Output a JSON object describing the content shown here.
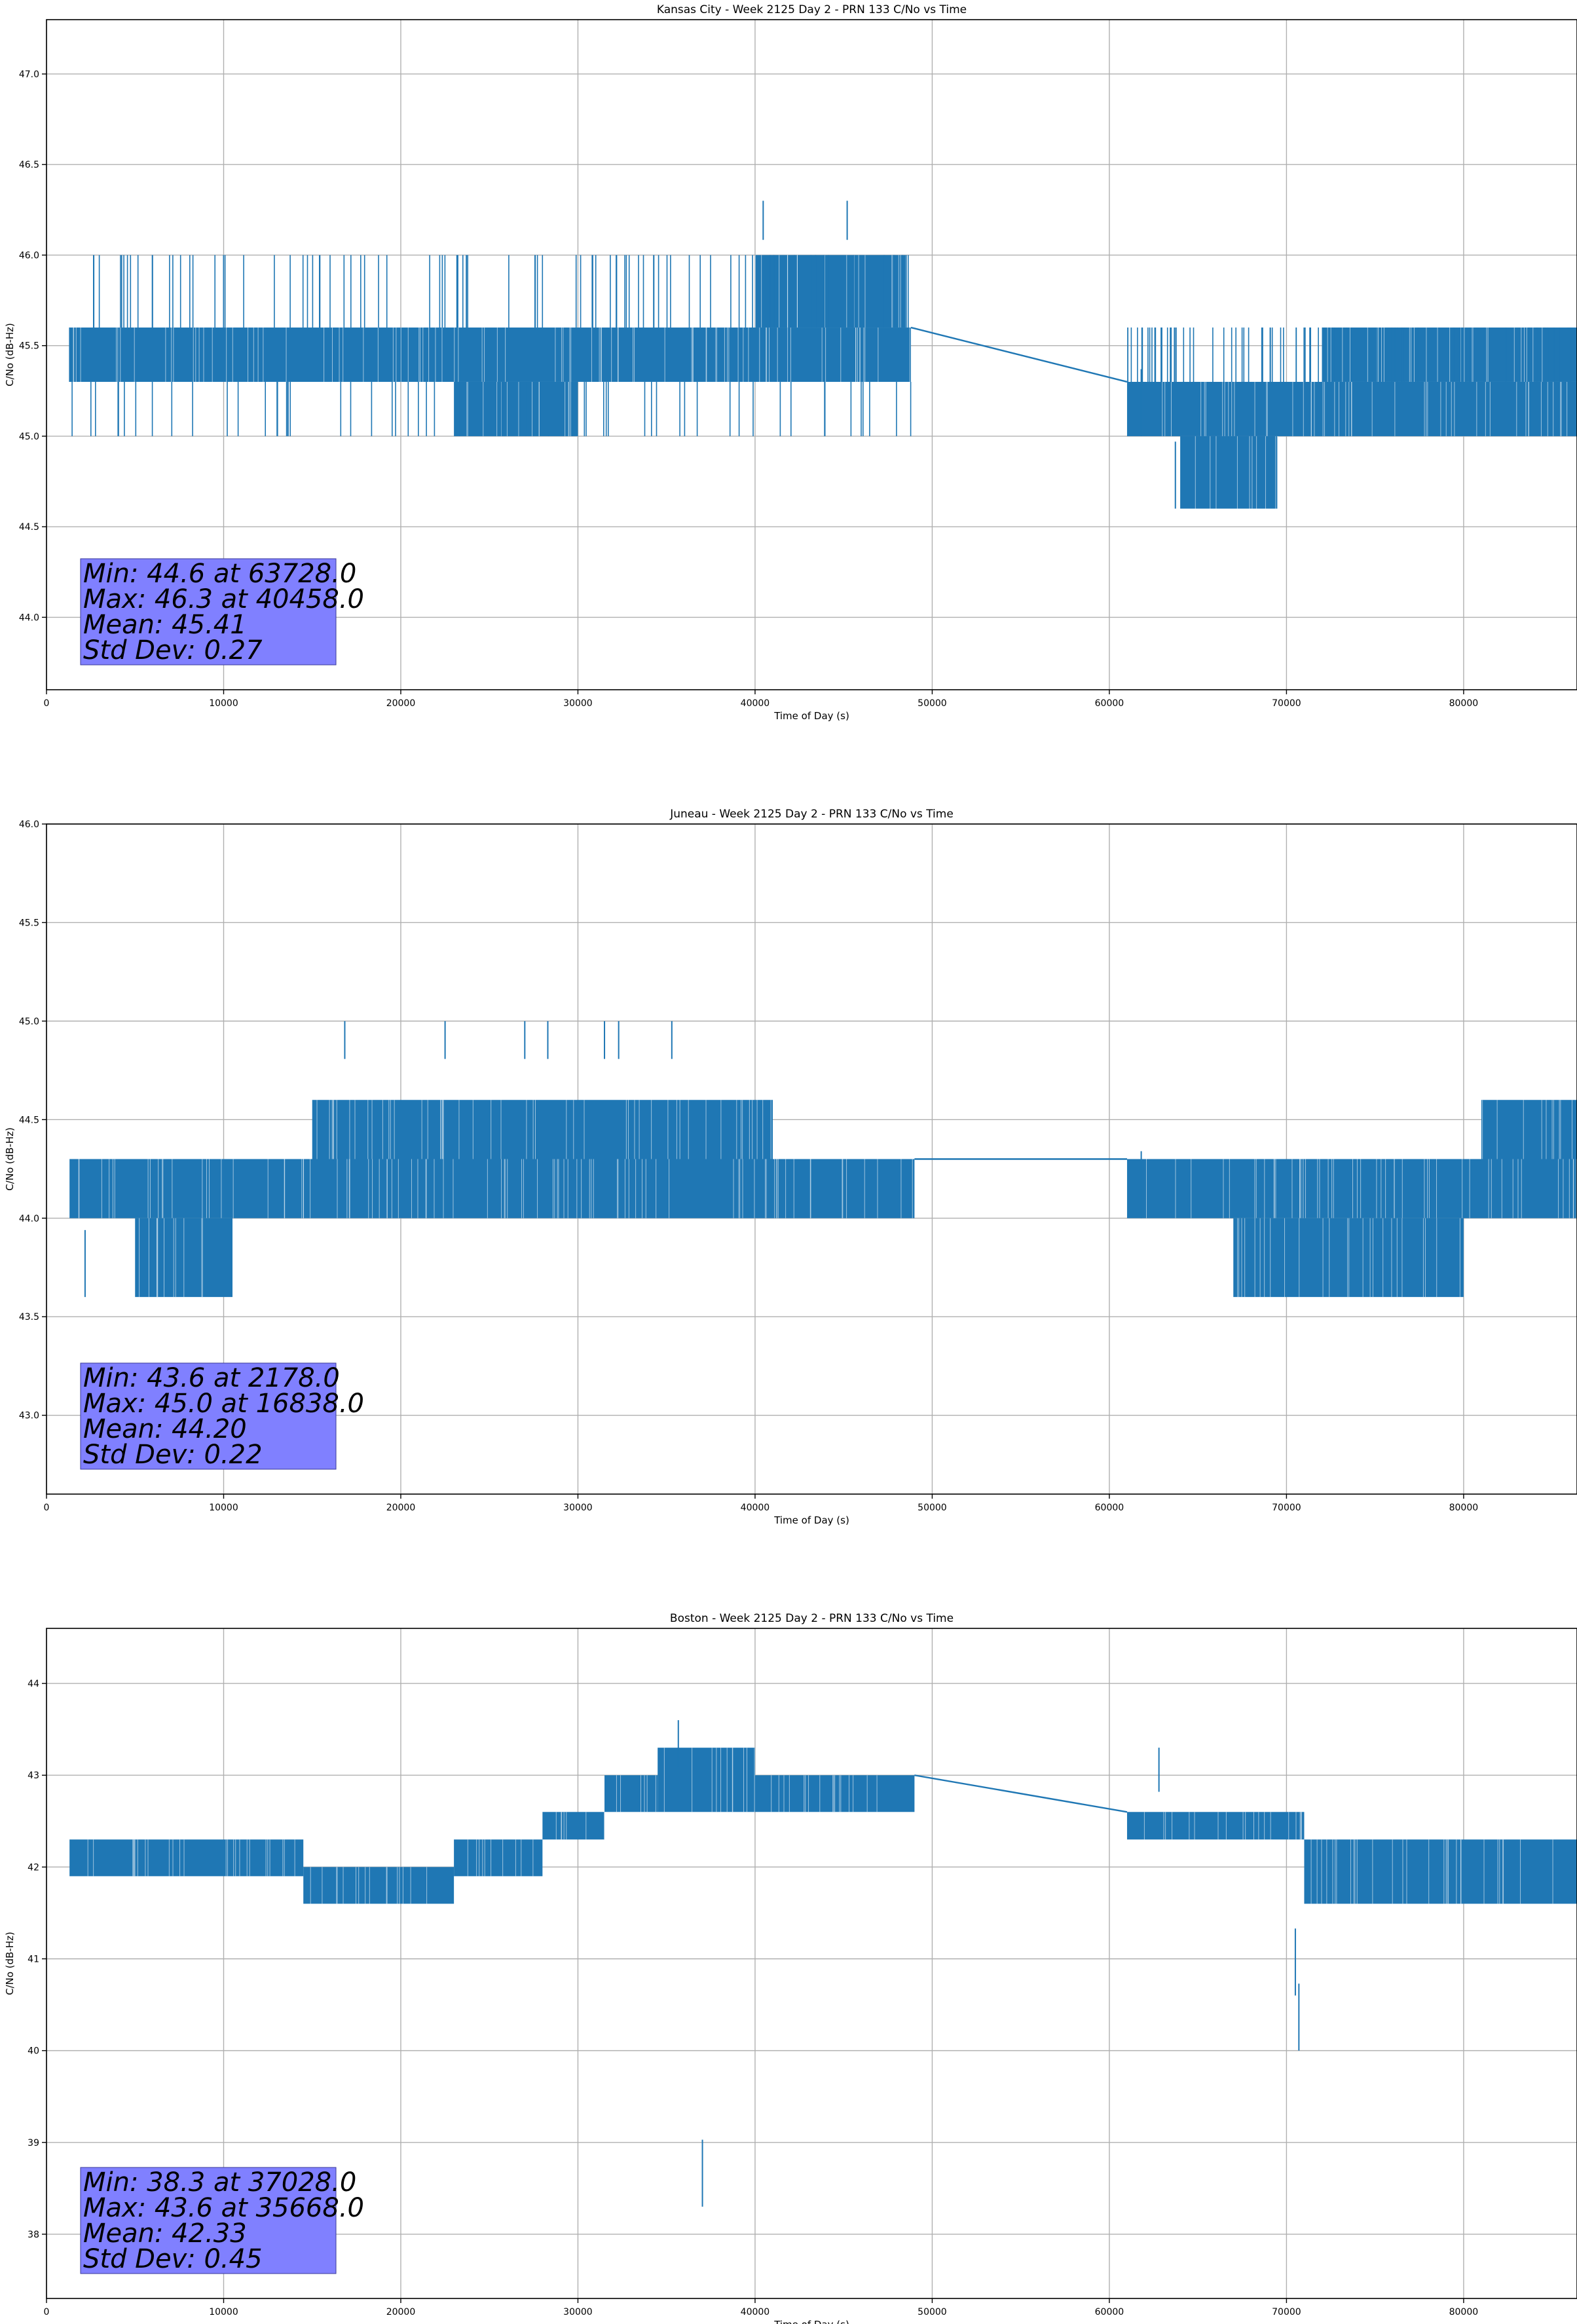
{
  "colors": {
    "series": "#1f77b4",
    "grid": "#b0b0b0",
    "stats_box": "#8080ff"
  },
  "chart_data": [
    {
      "type": "line",
      "title": "Kansas City - Week 2125 Day 2 - PRN 133 C/No vs Time",
      "xlabel": "Time of Day (s)",
      "ylabel": "C/No (dB-Hz)",
      "xlim": [
        0,
        86400
      ],
      "ylim": [
        43.6,
        47.3
      ],
      "xticks": [
        0,
        10000,
        20000,
        30000,
        40000,
        50000,
        60000,
        70000,
        80000
      ],
      "xtick_labels": [
        "0",
        "10000",
        "20000",
        "30000",
        "40000",
        "50000",
        "60000",
        "70000",
        "80000"
      ],
      "yticks": [
        44.0,
        44.5,
        45.0,
        45.5,
        46.0,
        46.5,
        47.0
      ],
      "ytick_labels": [
        "44.0",
        "44.5",
        "45.0",
        "45.5",
        "46.0",
        "46.5",
        "47.0"
      ],
      "grid": true,
      "data_gap": [
        48800,
        61000
      ],
      "series": [
        {
          "segments": [
            {
              "x": [
                1300,
                48800
              ],
              "band": [
                45.3,
                45.6
              ],
              "spikes_hi": [
                45.6,
                46.0
              ],
              "spikes_lo": [
                45.0,
                45.3
              ]
            },
            {
              "x": 1300,
              "y": [
                45.3,
                45.6
              ]
            },
            {
              "x": [
                23000,
                30000
              ],
              "band": [
                45.0,
                45.3
              ]
            },
            {
              "x": [
                40000,
                48500
              ],
              "band": [
                45.6,
                46.0
              ]
            },
            {
              "x": [
                61000,
                86400
              ],
              "band": [
                45.0,
                45.3
              ],
              "spikes_hi": [
                45.3,
                45.6
              ]
            },
            {
              "x": [
                64000,
                69500
              ],
              "band": [
                44.6,
                45.0
              ]
            },
            {
              "x": [
                72000,
                86400
              ],
              "band": [
                45.3,
                45.6
              ]
            }
          ],
          "line": [
            [
              48800,
              45.6
            ],
            [
              61000,
              45.3
            ]
          ],
          "notable": [
            [
              40458,
              46.3
            ],
            [
              45200,
              46.3
            ],
            [
              63728,
              44.6
            ],
            [
              61800,
              45.0
            ]
          ]
        }
      ],
      "stats": [
        "Min: 44.6 at 63728.0",
        "Max: 46.3 at 40458.0",
        "Mean: 45.41",
        "Std Dev: 0.27"
      ]
    },
    {
      "type": "line",
      "title": "Juneau - Week 2125 Day 2 - PRN 133 C/No vs Time",
      "xlabel": "Time of Day (s)",
      "ylabel": "C/No (dB-Hz)",
      "xlim": [
        0,
        86400
      ],
      "ylim": [
        42.6,
        46.0
      ],
      "xticks": [
        0,
        10000,
        20000,
        30000,
        40000,
        50000,
        60000,
        70000,
        80000
      ],
      "xtick_labels": [
        "0",
        "10000",
        "20000",
        "30000",
        "40000",
        "50000",
        "60000",
        "70000",
        "80000"
      ],
      "yticks": [
        43.0,
        43.5,
        44.0,
        44.5,
        45.0,
        45.5,
        46.0
      ],
      "ytick_labels": [
        "43.0",
        "43.5",
        "44.0",
        "44.5",
        "45.0",
        "45.5",
        "46.0"
      ],
      "grid": true,
      "data_gap": [
        49000,
        61000
      ],
      "series": [
        {
          "segments": [
            {
              "x": [
                1300,
                49000
              ],
              "band": [
                44.0,
                44.3
              ]
            },
            {
              "x": [
                5000,
                10500
              ],
              "band": [
                43.6,
                44.0
              ]
            },
            {
              "x": [
                15000,
                41000
              ],
              "band": [
                44.3,
                44.6
              ]
            },
            {
              "x": [
                61000,
                86400
              ],
              "band": [
                44.0,
                44.3
              ]
            },
            {
              "x": [
                67000,
                80000
              ],
              "band": [
                43.6,
                44.0
              ]
            },
            {
              "x": [
                81000,
                86400
              ],
              "band": [
                44.3,
                44.6
              ]
            }
          ],
          "line": [
            [
              49000,
              44.3
            ],
            [
              61000,
              44.3
            ]
          ],
          "notable": [
            [
              2178,
              43.6
            ],
            [
              16838,
              45.0
            ],
            [
              22500,
              45.0
            ],
            [
              27000,
              45.0
            ],
            [
              28300,
              45.0
            ],
            [
              31500,
              45.0
            ],
            [
              32300,
              45.0
            ],
            [
              35300,
              45.0
            ],
            [
              61800,
              44.0
            ]
          ]
        }
      ],
      "stats": [
        "Min: 43.6 at 2178.0",
        "Max: 45.0 at 16838.0",
        "Mean: 44.20",
        "Std Dev: 0.22"
      ]
    },
    {
      "type": "line",
      "title": "Boston - Week 2125 Day 2 - PRN 133 C/No vs Time",
      "xlabel": "Time of Day (s)",
      "ylabel": "C/No (dB-Hz)",
      "xlim": [
        0,
        86400
      ],
      "ylim": [
        37.3,
        44.6
      ],
      "xticks": [
        0,
        10000,
        20000,
        30000,
        40000,
        50000,
        60000,
        70000,
        80000
      ],
      "xtick_labels": [
        "0",
        "10000",
        "20000",
        "30000",
        "40000",
        "50000",
        "60000",
        "70000",
        "80000"
      ],
      "yticks": [
        38,
        39,
        40,
        41,
        42,
        43,
        44
      ],
      "ytick_labels": [
        "38",
        "39",
        "40",
        "41",
        "42",
        "43",
        "44"
      ],
      "grid": true,
      "data_gap": [
        49000,
        61000
      ],
      "series": [
        {
          "segments": [
            {
              "x": [
                1300,
                14500
              ],
              "band": [
                41.9,
                42.3
              ]
            },
            {
              "x": [
                14500,
                23000
              ],
              "band": [
                41.6,
                42.0
              ]
            },
            {
              "x": [
                23000,
                28000
              ],
              "band": [
                41.9,
                42.3
              ]
            },
            {
              "x": [
                28000,
                31500
              ],
              "band": [
                42.3,
                42.6
              ]
            },
            {
              "x": [
                31500,
                34500
              ],
              "band": [
                42.6,
                43.0
              ]
            },
            {
              "x": [
                34500,
                40000
              ],
              "band": [
                42.6,
                43.3
              ]
            },
            {
              "x": [
                40000,
                49000
              ],
              "band": [
                42.6,
                43.0
              ]
            },
            {
              "x": [
                61000,
                71000
              ],
              "band": [
                42.3,
                42.6
              ]
            },
            {
              "x": [
                71000,
                86400
              ],
              "band": [
                41.6,
                42.3
              ]
            }
          ],
          "line": [
            [
              49000,
              43.0
            ],
            [
              61000,
              42.6
            ]
          ],
          "notable": [
            [
              37028,
              38.3
            ],
            [
              35668,
              43.6
            ],
            [
              62800,
              43.3
            ],
            [
              70700,
              40.0
            ],
            [
              70500,
              40.6
            ]
          ]
        }
      ],
      "stats": [
        "Min: 38.3 at 37028.0",
        "Max: 43.6 at 35668.0",
        "Mean: 42.33",
        "Std Dev: 0.45"
      ]
    }
  ]
}
